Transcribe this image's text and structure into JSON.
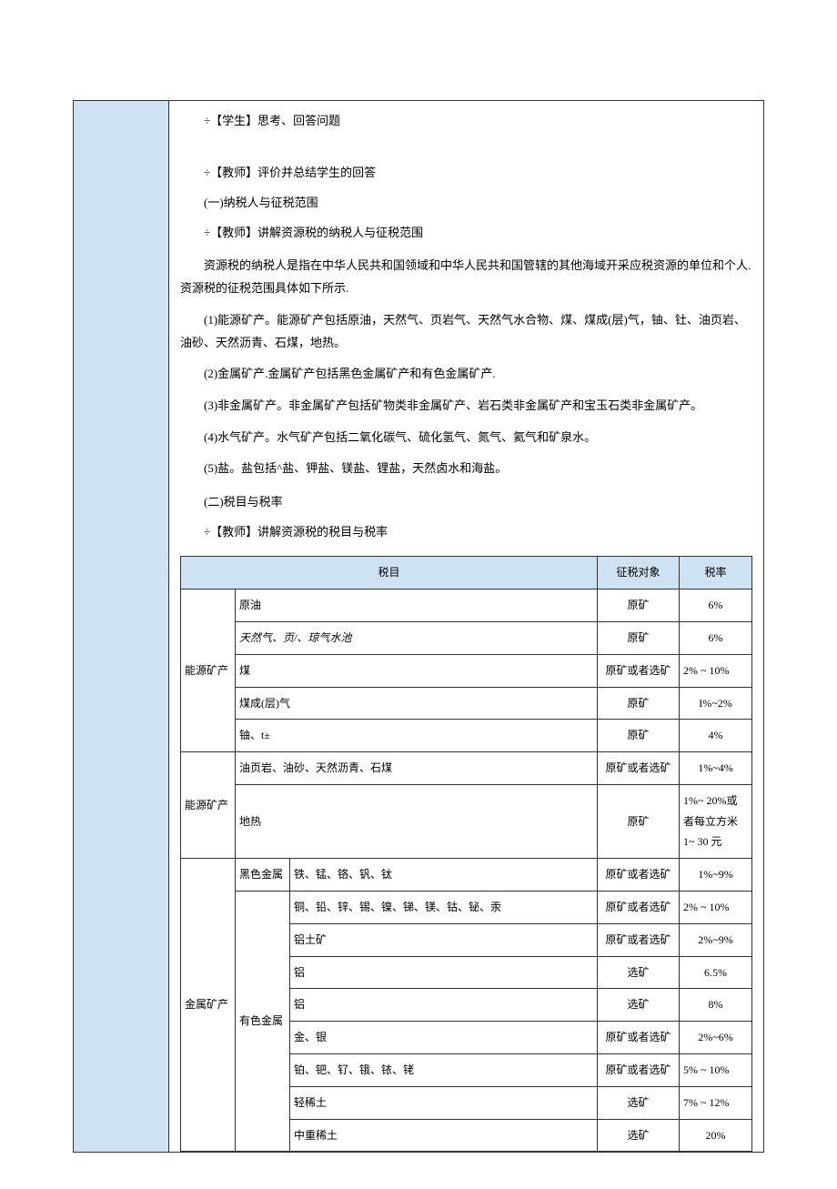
{
  "colors": {
    "accent_bg": "#cfe2f3",
    "border": "#333333",
    "text": "#000000",
    "page_bg": "#ffffff"
  },
  "body": {
    "p1": "÷【学生】思考、回答问题",
    "p2": "÷【教师】评价并总结学生的回答",
    "p3": "(一)纳税人与征税范围",
    "p4": "÷【教师】讲解资源税的纳税人与征税范围",
    "intro1": "资源税的纳税人是指在中华人民共和国领域和中华人民共和国管辖的其他海域开采应税资源的单位和个人.资源税的征税范围具体如下所示.",
    "intro2": "(1)能源矿产。能源矿产包括原油，天然气、页岩气、天然气水合物、煤、煤成(层)气，铀、钍、油页岩、油砂、天然沥青、石煤，地热。",
    "intro3": "(2)金属矿产.金属矿产包括黑色金属矿产和有色金属矿产.",
    "intro4": "(3)非金属矿产。非金属矿产包括矿物类非金属矿产、岩石类非金属矿产和宝玉石类非金属矿产。",
    "intro5": "(4)水气矿产。水气矿产包括二氧化碳气、硫化氢气、氮气、氦气和矿泉水。",
    "intro6": "(5)盐。盐包括^盐、钾盐、镁盐、锂盐，天然卤水和海盐。",
    "p5": "(二)税目与税率",
    "p6": "÷【教师】讲解资源税的税目与税率"
  },
  "table": {
    "headers": {
      "c1": "税目",
      "c2": "征税对象",
      "c3": "税率"
    },
    "g1": {
      "label": "能源矿产",
      "r1": {
        "item": "原油",
        "obj": "原矿",
        "rate": "6%"
      },
      "r2": {
        "item": "天然气、页/、琼气水池",
        "obj": "原矿",
        "rate": "6%"
      },
      "r3": {
        "item": "煤",
        "obj": "原矿或者选矿",
        "rate": "2%    ~ 10%"
      },
      "r4": {
        "item": "煤成(层)气",
        "obj": "原矿",
        "rate": "I%~2%"
      },
      "r5": {
        "item": "铀、t±",
        "obj": "原矿",
        "rate": "4%"
      }
    },
    "g2": {
      "label": "能源矿产",
      "r1": {
        "item": "油页岩、油砂、天然沥青、石煤",
        "obj": "原矿或者选矿",
        "rate": "1%~4%"
      },
      "r2": {
        "item": "地热",
        "obj": "原矿",
        "rate": "1%~ 20%或者每立方米 1~ 30 元"
      }
    },
    "g3": {
      "label": "金属矿产",
      "sub1": {
        "label": "黑色金属",
        "item": "铁、锰、铬、钒、钛",
        "obj": "原矿或者选矿",
        "rate": "1%~9%"
      },
      "sub2": {
        "label": "有色金属",
        "r1": {
          "item": "铜、铅、锌、锡、镍、锑、镁、钴、铋、汞",
          "obj": "原矿或者选矿",
          "rate": "2%    ~ 10%"
        },
        "r2": {
          "item": "铝土矿",
          "obj": "原矿或者选矿",
          "rate": "2%~9%"
        },
        "r3": {
          "item": "铝",
          "obj": "选矿",
          "rate": "6.5%"
        },
        "r4": {
          "item": "铝",
          "obj": "选矿",
          "rate": "8%"
        },
        "r5": {
          "item": "金、银",
          "obj": "原矿或者选矿",
          "rate": "2%~6%"
        },
        "r6": {
          "item": "铂、钯、钌、锇、铱、铑",
          "obj": "原矿或者选矿",
          "rate": "5%    ~ 10%"
        },
        "r7": {
          "item": "轻稀土",
          "obj": "选矿",
          "rate": "7%    ~ 12%"
        },
        "r8": {
          "item": "中重稀土",
          "obj": "选矿",
          "rate": "20%"
        }
      }
    }
  }
}
